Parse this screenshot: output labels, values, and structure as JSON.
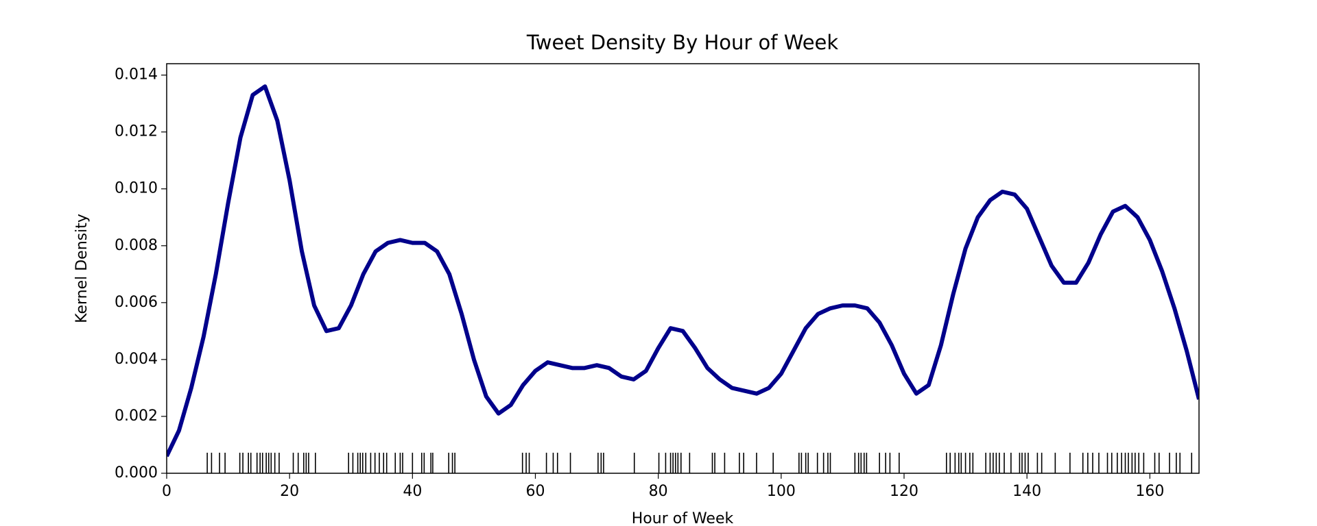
{
  "chart_data": {
    "type": "line",
    "title": "Tweet Density By Hour of Week",
    "x_label": "Hour of Week",
    "y_label": "Kernel Density",
    "xlim": [
      0,
      168
    ],
    "ylim": [
      0,
      0.0144
    ],
    "xticks": [
      0,
      20,
      40,
      60,
      80,
      100,
      120,
      140,
      160
    ],
    "yticks": [
      {
        "value": 0,
        "label": "0.000"
      },
      {
        "value": 0.002,
        "label": "0.002"
      },
      {
        "value": 0.004,
        "label": "0.004"
      },
      {
        "value": 0.006,
        "label": "0.006"
      },
      {
        "value": 0.008,
        "label": "0.008"
      },
      {
        "value": 0.01,
        "label": "0.010"
      },
      {
        "value": 0.012,
        "label": "0.012"
      },
      {
        "value": 0.014,
        "label": "0.014"
      }
    ],
    "x": [
      0,
      2,
      4,
      6,
      8,
      10,
      12,
      14,
      16,
      18,
      20,
      22,
      24,
      26,
      28,
      30,
      32,
      34,
      36,
      38,
      40,
      42,
      44,
      46,
      48,
      50,
      52,
      54,
      56,
      58,
      60,
      62,
      64,
      66,
      68,
      70,
      72,
      74,
      76,
      78,
      80,
      82,
      84,
      86,
      88,
      90,
      92,
      94,
      96,
      98,
      100,
      102,
      104,
      106,
      108,
      110,
      112,
      114,
      116,
      118,
      120,
      122,
      124,
      126,
      128,
      130,
      132,
      134,
      136,
      138,
      140,
      142,
      144,
      146,
      148,
      150,
      152,
      154,
      156,
      158,
      160,
      162,
      164,
      166,
      168
    ],
    "series": [
      {
        "color": "#00008b",
        "values": [
          0.0006,
          0.0015,
          0.003,
          0.0048,
          0.007,
          0.0095,
          0.0118,
          0.0133,
          0.0136,
          0.0124,
          0.0103,
          0.0078,
          0.0059,
          0.005,
          0.0051,
          0.0059,
          0.007,
          0.0078,
          0.0081,
          0.0082,
          0.0081,
          0.0081,
          0.0078,
          0.007,
          0.0056,
          0.004,
          0.0027,
          0.0021,
          0.0024,
          0.0031,
          0.0036,
          0.0039,
          0.0038,
          0.0037,
          0.0037,
          0.0038,
          0.0037,
          0.0034,
          0.0033,
          0.0036,
          0.0044,
          0.0051,
          0.005,
          0.0044,
          0.0037,
          0.0033,
          0.003,
          0.0029,
          0.0028,
          0.003,
          0.0035,
          0.0043,
          0.0051,
          0.0056,
          0.0058,
          0.0059,
          0.0059,
          0.0058,
          0.0053,
          0.0045,
          0.0035,
          0.0028,
          0.0031,
          0.0045,
          0.0063,
          0.0079,
          0.009,
          0.0096,
          0.0099,
          0.0098,
          0.0093,
          0.0083,
          0.0073,
          0.0067,
          0.0067,
          0.0074,
          0.0084,
          0.0092,
          0.0094,
          0.009,
          0.0082,
          0.0071,
          0.0058,
          0.0043,
          0.0026
        ]
      }
    ],
    "rug_color": "#000000",
    "rug": [
      6.6,
      7.3,
      8.6,
      9.5,
      11.9,
      12.4,
      13.3,
      13.7,
      14.7,
      15.2,
      15.6,
      16.2,
      16.6,
      17.0,
      17.6,
      18.3,
      20.6,
      21.4,
      22.3,
      22.7,
      23.1,
      24.2,
      29.6,
      30.3,
      31.1,
      31.5,
      31.9,
      32.4,
      33.2,
      33.9,
      34.6,
      35.3,
      35.8,
      37.2,
      38.0,
      38.4,
      40.0,
      41.5,
      41.9,
      43.0,
      43.3,
      45.9,
      46.5,
      46.9,
      57.9,
      58.5,
      59.0,
      61.8,
      62.9,
      63.6,
      65.7,
      70.2,
      70.7,
      71.1,
      76.1,
      80.1,
      81.2,
      82.0,
      82.4,
      82.8,
      83.2,
      83.7,
      85.1,
      88.8,
      89.2,
      90.8,
      93.2,
      93.9,
      96.0,
      98.7,
      102.9,
      103.3,
      104.0,
      104.4,
      105.9,
      106.9,
      107.6,
      108.0,
      112.0,
      112.6,
      113.0,
      113.5,
      113.9,
      116.0,
      117.0,
      117.7,
      119.2,
      126.9,
      127.5,
      128.3,
      128.9,
      129.3,
      130.0,
      130.7,
      131.2,
      133.3,
      134.0,
      134.5,
      135.0,
      135.5,
      136.3,
      137.4,
      138.8,
      139.2,
      139.7,
      140.2,
      141.7,
      142.4,
      144.6,
      147.0,
      149.1,
      149.9,
      150.7,
      151.7,
      153.1,
      153.8,
      154.7,
      155.4,
      156.0,
      156.5,
      157.1,
      157.6,
      158.2,
      159.0,
      160.8,
      161.5,
      163.2,
      164.3,
      164.9,
      166.8
    ],
    "grid": false
  }
}
